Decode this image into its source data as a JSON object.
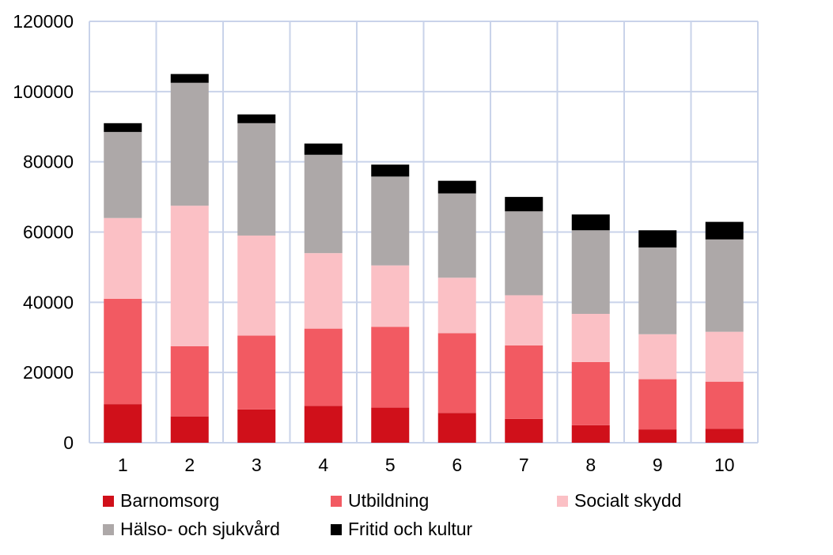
{
  "chart_data": {
    "type": "bar",
    "stacked": true,
    "categories": [
      "1",
      "2",
      "3",
      "4",
      "5",
      "6",
      "7",
      "8",
      "9",
      "10"
    ],
    "ylim": [
      0,
      120000
    ],
    "yticks": [
      "0",
      "20000",
      "40000",
      "60000",
      "80000",
      "100000",
      "120000"
    ],
    "grid": true,
    "legend_position": "bottom",
    "series": [
      {
        "name": "Barnomsorg",
        "color": "#d0101a",
        "values": [
          11000,
          7500,
          9500,
          10500,
          10000,
          8500,
          6800,
          5000,
          3800,
          4000
        ]
      },
      {
        "name": "Utbildning",
        "color": "#f25a62",
        "values": [
          30000,
          20000,
          21000,
          22000,
          23000,
          22700,
          20900,
          18000,
          14300,
          13400
        ]
      },
      {
        "name": "Socialt skydd",
        "color": "#fbc0c5",
        "values": [
          23000,
          40000,
          28500,
          21500,
          17500,
          15800,
          14300,
          13700,
          12800,
          14200
        ]
      },
      {
        "name": "Hälso- och sjukvård",
        "color": "#ada8a8",
        "values": [
          24500,
          35000,
          32000,
          28000,
          25300,
          24000,
          23900,
          23800,
          24700,
          26300
        ]
      },
      {
        "name": "Fritid och kultur",
        "color": "#000000",
        "values": [
          2500,
          2500,
          2500,
          3200,
          3400,
          3600,
          4100,
          4500,
          4900,
          5000
        ]
      }
    ]
  }
}
